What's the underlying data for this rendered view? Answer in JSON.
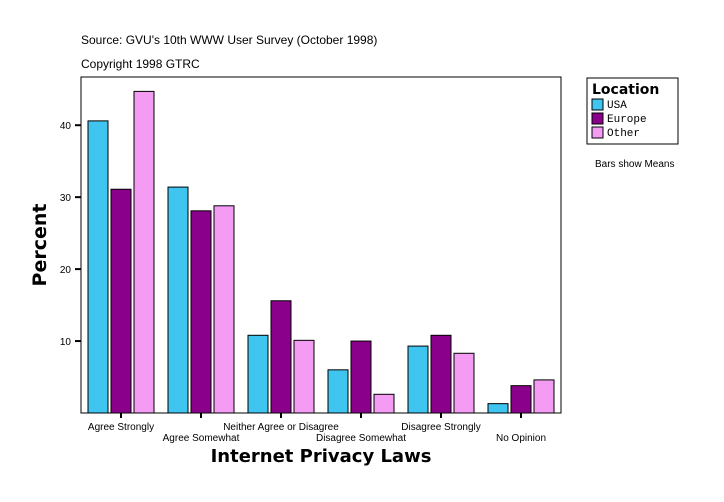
{
  "source": "Source: GVU's 10th WWW User Survey (October 1998)",
  "copyright": "Copyright 1998 GTRC",
  "note": "Bars show Means",
  "chart_data": {
    "type": "bar",
    "title": "",
    "xlabel": "Internet Privacy Laws",
    "ylabel": "Percent",
    "ylim": [
      0,
      46.7
    ],
    "yticks": [
      10,
      20,
      30,
      40
    ],
    "grid": false,
    "legend": {
      "title": "Location",
      "placement": "right"
    },
    "categories": [
      "Agree Strongly",
      "Agree Somewhat",
      "Neither Agree or Disagree",
      "Disagree Somewhat",
      "Disagree Strongly",
      "No Opinion"
    ],
    "series": [
      {
        "name": "USA",
        "color": "#40C4F0",
        "values": [
          40.6,
          31.4,
          10.8,
          6.0,
          9.3,
          1.3
        ]
      },
      {
        "name": "Europe",
        "color": "#8B008B",
        "values": [
          31.1,
          28.1,
          15.6,
          10.0,
          10.8,
          3.8
        ]
      },
      {
        "name": "Other",
        "color": "#F49CF4",
        "values": [
          44.7,
          28.8,
          10.1,
          2.6,
          8.3,
          4.6
        ]
      }
    ]
  }
}
